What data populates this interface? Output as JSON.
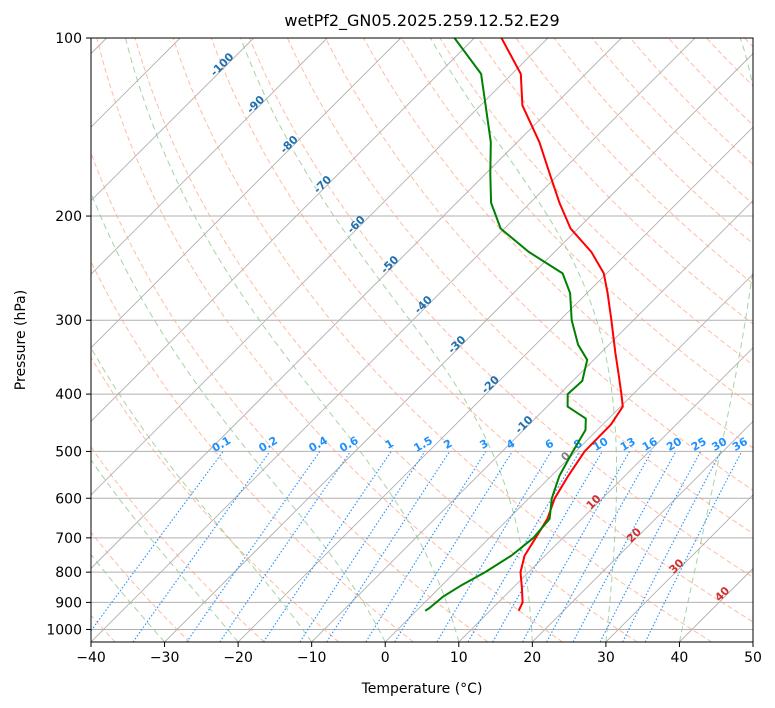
{
  "chart_data": {
    "type": "line",
    "title": "wetPf2_GN05.2025.259.12.52.E29",
    "xlabel": "Temperature (°C)",
    "ylabel": "Pressure (hPa)",
    "xlim": [
      -40,
      50
    ],
    "ylim": [
      1050,
      100
    ],
    "y_scale": "log",
    "skew": "skew-T",
    "x_ticks": [
      -40,
      -30,
      -20,
      -10,
      0,
      10,
      20,
      30,
      40,
      50
    ],
    "x_tick_labels": [
      "−40",
      "−30",
      "−20",
      "−10",
      "0",
      "10",
      "20",
      "30",
      "40",
      "50"
    ],
    "y_ticks": [
      100,
      200,
      300,
      400,
      500,
      600,
      700,
      800,
      900,
      1000
    ],
    "y_tick_labels": [
      "100",
      "200",
      "300",
      "400",
      "500",
      "600",
      "700",
      "800",
      "900",
      "1000"
    ],
    "grid": true,
    "series": [
      {
        "name": "Temperature",
        "color": "#ff0000",
        "points": [
          {
            "p": 930,
            "t": 13.9
          },
          {
            "p": 900,
            "t": 13.3
          },
          {
            "p": 850,
            "t": 11.2
          },
          {
            "p": 800,
            "t": 8.9
          },
          {
            "p": 750,
            "t": 7.2
          },
          {
            "p": 700,
            "t": 6.3
          },
          {
            "p": 650,
            "t": 5.3
          },
          {
            "p": 600,
            "t": 3.5
          },
          {
            "p": 550,
            "t": 2.3
          },
          {
            "p": 500,
            "t": 1.2
          },
          {
            "p": 450,
            "t": 1.1
          },
          {
            "p": 420,
            "t": 0.3
          },
          {
            "p": 400,
            "t": -1.6
          },
          {
            "p": 370,
            "t": -4.7
          },
          {
            "p": 340,
            "t": -8.1
          },
          {
            "p": 300,
            "t": -13.0
          },
          {
            "p": 270,
            "t": -17.2
          },
          {
            "p": 250,
            "t": -20.4
          },
          {
            "p": 230,
            "t": -25.0
          },
          {
            "p": 210,
            "t": -31.0
          },
          {
            "p": 190,
            "t": -36.0
          },
          {
            "p": 170,
            "t": -41.2
          },
          {
            "p": 150,
            "t": -47.0
          },
          {
            "p": 130,
            "t": -54.3
          },
          {
            "p": 115,
            "t": -58.8
          },
          {
            "p": 100,
            "t": -66.3
          }
        ]
      },
      {
        "name": "Dewpoint",
        "color": "#008000",
        "points": [
          {
            "p": 930,
            "t": 1.2
          },
          {
            "p": 920,
            "t": 1.4
          },
          {
            "p": 880,
            "t": 1.7
          },
          {
            "p": 840,
            "t": 2.7
          },
          {
            "p": 800,
            "t": 4.1
          },
          {
            "p": 750,
            "t": 5.4
          },
          {
            "p": 700,
            "t": 6.0
          },
          {
            "p": 650,
            "t": 5.6
          },
          {
            "p": 600,
            "t": 3.1
          },
          {
            "p": 550,
            "t": 1.1
          },
          {
            "p": 500,
            "t": -0.4
          },
          {
            "p": 460,
            "t": -1.6
          },
          {
            "p": 440,
            "t": -3.1
          },
          {
            "p": 420,
            "t": -7.2
          },
          {
            "p": 400,
            "t": -8.9
          },
          {
            "p": 380,
            "t": -8.7
          },
          {
            "p": 350,
            "t": -10.9
          },
          {
            "p": 330,
            "t": -14.2
          },
          {
            "p": 300,
            "t": -18.4
          },
          {
            "p": 270,
            "t": -22.3
          },
          {
            "p": 250,
            "t": -26.0
          },
          {
            "p": 230,
            "t": -33.5
          },
          {
            "p": 210,
            "t": -40.5
          },
          {
            "p": 190,
            "t": -45.3
          },
          {
            "p": 170,
            "t": -49.3
          },
          {
            "p": 150,
            "t": -53.6
          },
          {
            "p": 130,
            "t": -59.3
          },
          {
            "p": 115,
            "t": -64.2
          },
          {
            "p": 100,
            "t": -72.7
          }
        ]
      }
    ],
    "isotherms": {
      "color": "#b0b0b0",
      "values": [
        -100,
        -90,
        -80,
        -70,
        -60,
        -50,
        -40,
        -30,
        -20,
        -10,
        0,
        10,
        20,
        30,
        40,
        50
      ]
    },
    "dry_adiabats": {
      "color": "#ffa07a",
      "theta_c": [
        -40,
        -30,
        -20,
        -10,
        0,
        10,
        20,
        30,
        40,
        50,
        60,
        70,
        80,
        90,
        100,
        110,
        120,
        130,
        140,
        150,
        160,
        170,
        180,
        190,
        200
      ]
    },
    "moist_adiabats": {
      "color": "#90c890",
      "t_start_c": [
        -30,
        -20,
        -10,
        0,
        10,
        20,
        30,
        40
      ]
    },
    "mixing_ratios": {
      "color": "#1e90ff",
      "values_gkg": [
        0.1,
        0.2,
        0.4,
        0.6,
        1,
        1.5,
        2,
        3,
        4,
        6,
        8,
        10,
        13,
        16,
        20,
        25,
        30,
        36
      ],
      "labels": [
        "0.1",
        "0.2",
        "0.4",
        "0.6",
        "1",
        "1.5",
        "2",
        "3",
        "4",
        "6",
        "8",
        "10",
        "13",
        "16",
        "20",
        "25",
        "30",
        "36"
      ],
      "label_pressure": 500
    },
    "isotherm_labels": {
      "blue": {
        "color": "#2070b0",
        "items": [
          {
            "text": "-100",
            "t": -100
          },
          {
            "text": "-90",
            "t": -90
          },
          {
            "text": "-80",
            "t": -80
          },
          {
            "text": "-70",
            "t": -70
          },
          {
            "text": "-60",
            "t": -60
          },
          {
            "text": "-50",
            "t": -50
          },
          {
            "text": "-40",
            "t": -40
          },
          {
            "text": "-30",
            "t": -30
          },
          {
            "text": "-20",
            "t": -20
          },
          {
            "text": "-10",
            "t": -10
          }
        ]
      },
      "zero": {
        "color": "#808080",
        "text": "0",
        "t": 0,
        "p": 515
      },
      "red": {
        "color": "#d03030",
        "items": [
          {
            "text": "10",
            "t": 10,
            "p": 615
          },
          {
            "text": "20",
            "t": 20,
            "p": 700
          },
          {
            "text": "30",
            "t": 30,
            "p": 790
          },
          {
            "text": "40",
            "t": 40,
            "p": 880
          }
        ]
      }
    }
  }
}
